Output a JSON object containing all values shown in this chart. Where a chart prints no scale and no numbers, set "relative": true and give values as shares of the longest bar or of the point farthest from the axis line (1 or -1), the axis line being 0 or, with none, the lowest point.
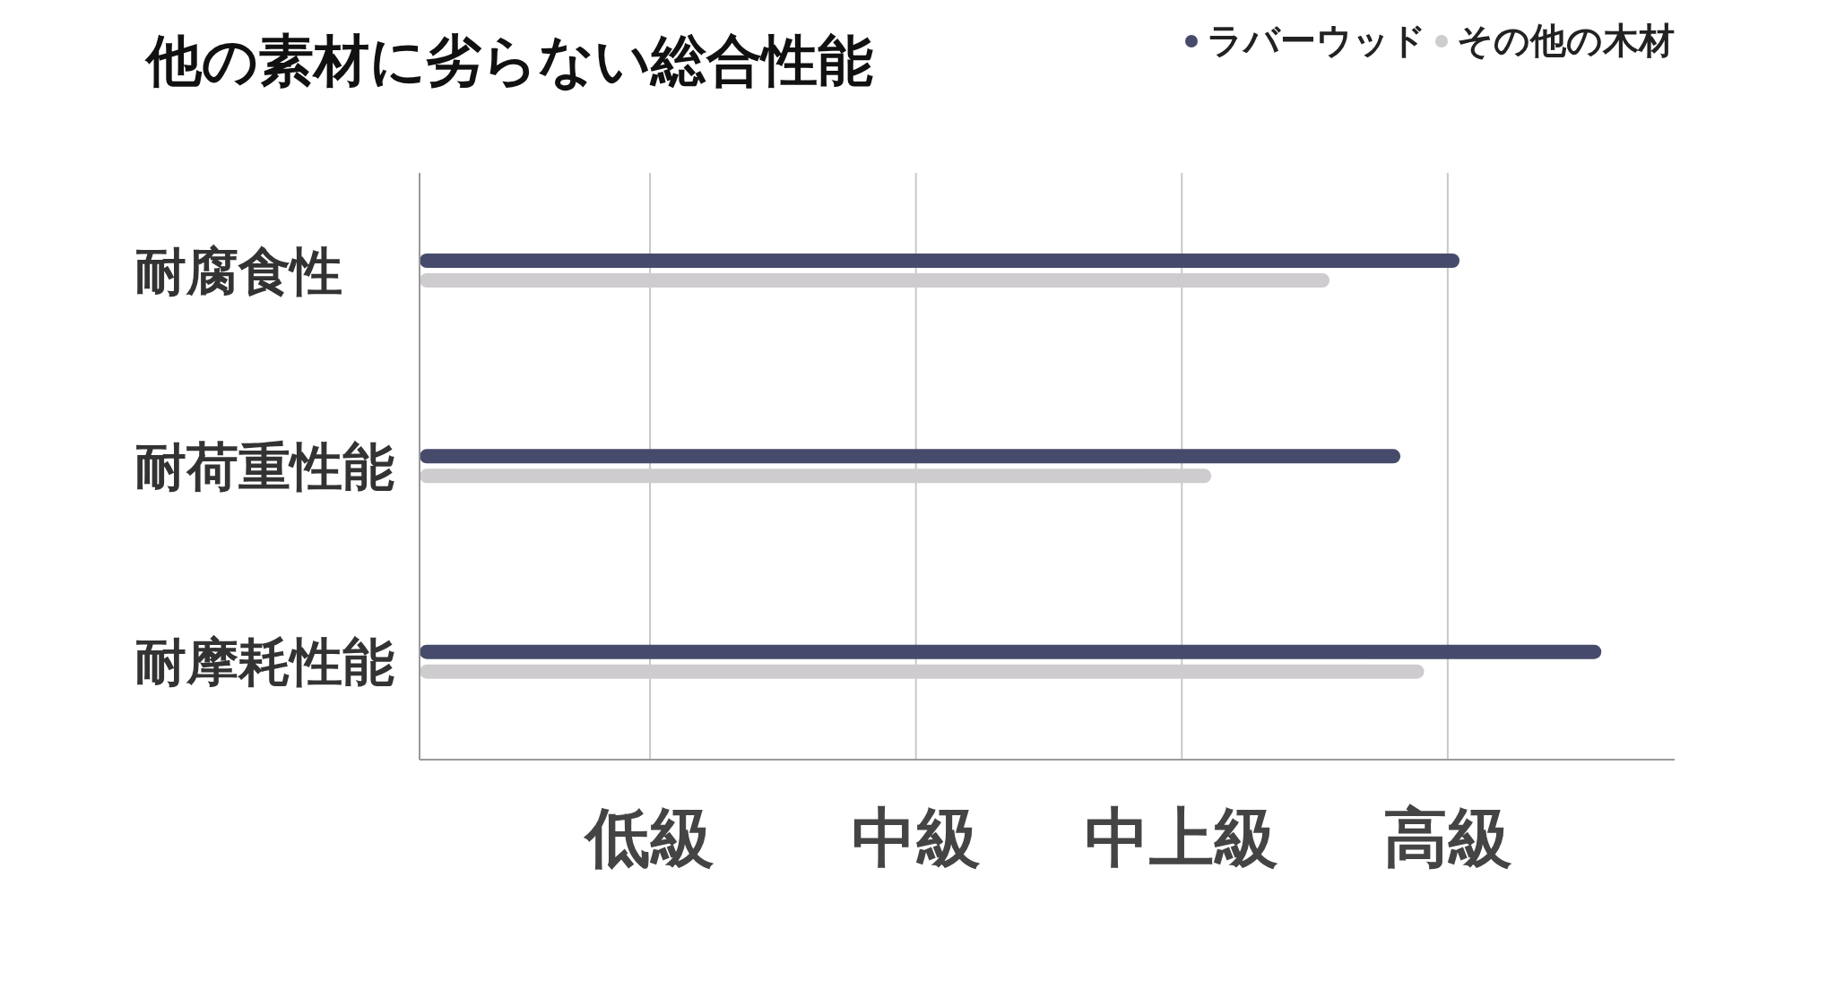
{
  "chart_data": {
    "type": "bar",
    "orientation": "horizontal",
    "title": "他の素材に劣らない総合性能",
    "relative": true,
    "categories": [
      "耐腐食性",
      "耐荷重性能",
      "耐摩耗性能"
    ],
    "series": [
      {
        "name": "ラバーウッド",
        "color": "#474b6b",
        "values": [
          0.88,
          0.83,
          1
        ]
      },
      {
        "name": "その他の木材",
        "color": "#cfcccf",
        "values": [
          0.77,
          0.67,
          0.85
        ]
      }
    ],
    "annotations": [
      "低級",
      "中級",
      "中上級",
      "高級"
    ],
    "grid": "x",
    "legend": "top right"
  }
}
